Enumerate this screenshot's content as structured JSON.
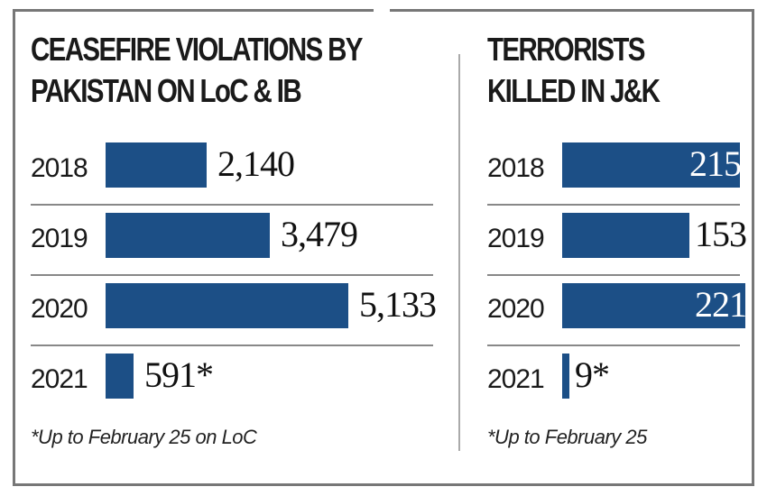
{
  "chart_data": [
    {
      "type": "bar",
      "orientation": "horizontal",
      "title": "CEASEFIRE VIOLATIONS BY\nPAKISTAN ON LoC & IB",
      "categories": [
        "2018",
        "2019",
        "2020",
        "2021"
      ],
      "values": [
        2140,
        3479,
        5133,
        591
      ],
      "labels": [
        "2,140",
        "3,479",
        "5,133",
        "591*"
      ],
      "footnote": "*Up to February 25 on LoC",
      "bar_color": "#1c4f86"
    },
    {
      "type": "bar",
      "orientation": "horizontal",
      "title": "TERRORISTS\nKILLED IN J&K",
      "categories": [
        "2018",
        "2019",
        "2020",
        "2021"
      ],
      "values": [
        215,
        153,
        221,
        9
      ],
      "labels": [
        "215",
        "153",
        "221",
        "9*"
      ],
      "footnote": "*Up to February 25",
      "bar_color": "#1c4f86"
    }
  ]
}
